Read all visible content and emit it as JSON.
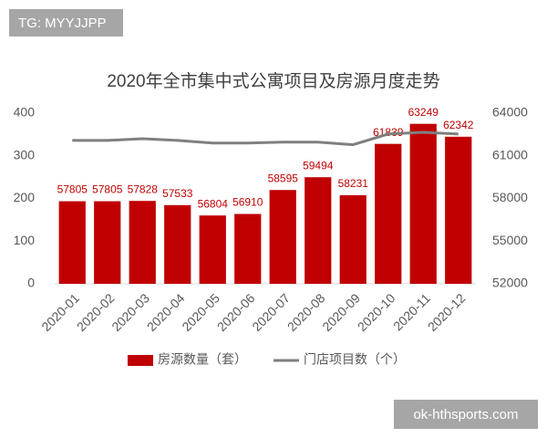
{
  "watermarks": {
    "top": "TG: MYYJJPP",
    "bottom": "ok-hthsports.com"
  },
  "chart_data": {
    "type": "bar",
    "title": "2020年全市集中式公寓项目及房源月度走势",
    "categories": [
      "2020-01",
      "2020-02",
      "2020-03",
      "2020-04",
      "2020-05",
      "2020-06",
      "2020-07",
      "2020-08",
      "2020-09",
      "2020-10",
      "2020-11",
      "2020-12"
    ],
    "series": [
      {
        "name": "房源数量（套）",
        "type": "bar",
        "axis": "y2",
        "color": "#c00000",
        "values": [
          57805,
          57805,
          57828,
          57533,
          56804,
          56910,
          58595,
          59494,
          58231,
          61839,
          63249,
          62342
        ]
      },
      {
        "name": "门店项目数（个）",
        "type": "line",
        "axis": "y",
        "color": "#7f7f7f",
        "values": [
          336,
          336,
          340,
          336,
          330,
          330,
          332,
          332,
          326,
          351,
          355,
          351
        ]
      }
    ],
    "ylim": [
      0,
      400
    ],
    "yticks": [
      0,
      100,
      200,
      300,
      400
    ],
    "y2lim": [
      52000,
      64000
    ],
    "y2ticks": [
      52000,
      55000,
      58000,
      61000,
      64000
    ],
    "legend": "bottom"
  }
}
